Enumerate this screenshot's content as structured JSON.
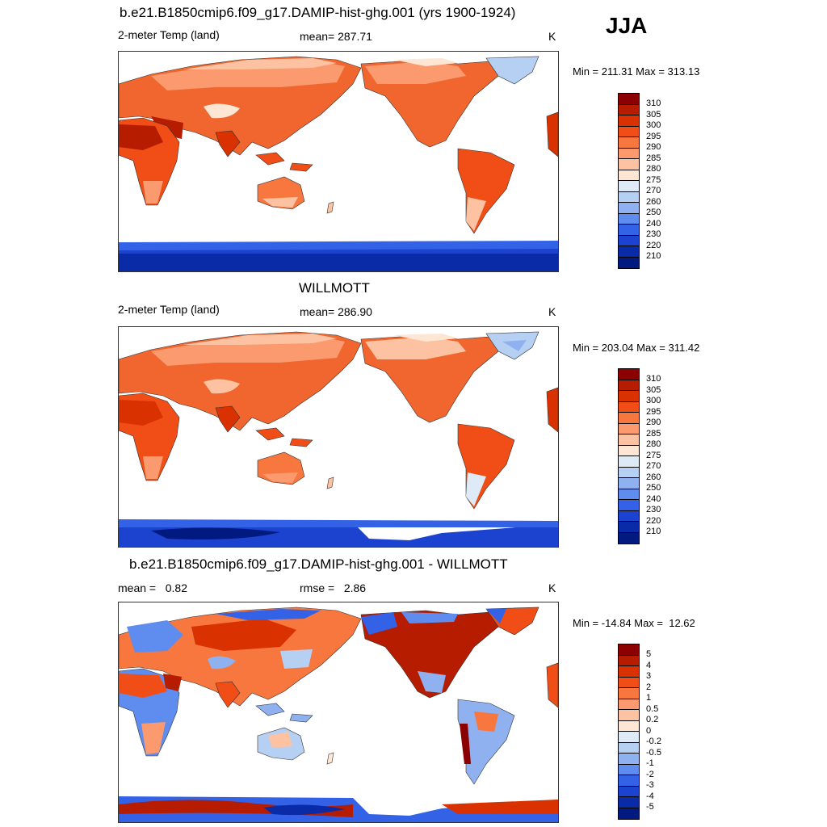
{
  "season": "JJA",
  "panels": [
    {
      "id": "model",
      "title": "b.e21.B1850cmip6.f09_g17.DAMIP-hist-ghg.001 (yrs 1900-1924)",
      "left_label": "2-meter Temp (land)",
      "center_label": "mean= 287.71",
      "units": "K",
      "minmax": "Min = 211.31 Max = 313.13",
      "colorbar": {
        "labels": [
          "310",
          "305",
          "300",
          "295",
          "290",
          "285",
          "280",
          "275",
          "270",
          "260",
          "250",
          "240",
          "230",
          "220",
          "210"
        ],
        "colors": [
          "#8b0000",
          "#b51c00",
          "#d93200",
          "#f04e16",
          "#f7773f",
          "#fa9a6e",
          "#fcc2a2",
          "#fde6d4",
          "#deebf7",
          "#b6d0f4",
          "#8fb1ef",
          "#5f8def",
          "#3462e6",
          "#1c43d0",
          "#0a2ba8",
          "#001a80"
        ]
      }
    },
    {
      "id": "obs",
      "title": "WILLMOTT",
      "left_label": "2-meter Temp (land)",
      "center_label": "mean= 286.90",
      "units": "K",
      "minmax": "Min = 203.04 Max = 311.42",
      "colorbar": {
        "labels": [
          "310",
          "305",
          "300",
          "295",
          "290",
          "285",
          "280",
          "275",
          "270",
          "260",
          "250",
          "240",
          "230",
          "220",
          "210"
        ],
        "colors": [
          "#8b0000",
          "#b51c00",
          "#d93200",
          "#f04e16",
          "#f7773f",
          "#fa9a6e",
          "#fcc2a2",
          "#fde6d4",
          "#deebf7",
          "#b6d0f4",
          "#8fb1ef",
          "#5f8def",
          "#3462e6",
          "#1c43d0",
          "#0a2ba8",
          "#001a80"
        ]
      }
    },
    {
      "id": "diff",
      "title": "b.e21.B1850cmip6.f09_g17.DAMIP-hist-ghg.001 - WILLMOTT",
      "left_label": "mean =   0.82",
      "center_label": "rmse =   2.86",
      "units": "K",
      "minmax": "Min = -14.84 Max =  12.62",
      "colorbar": {
        "labels": [
          "5",
          "4",
          "3",
          "2",
          "1",
          "0.5",
          "0.2",
          "0",
          "-0.2",
          "-0.5",
          "-1",
          "-2",
          "-3",
          "-4",
          "-5"
        ],
        "colors": [
          "#8b0000",
          "#b51c00",
          "#d93200",
          "#f04e16",
          "#f7773f",
          "#fa9a6e",
          "#fcc2a2",
          "#fde6d4",
          "#deebf7",
          "#b6d0f4",
          "#8fb1ef",
          "#5f8def",
          "#3462e6",
          "#1c43d0",
          "#0a2ba8",
          "#001a80"
        ]
      }
    }
  ]
}
